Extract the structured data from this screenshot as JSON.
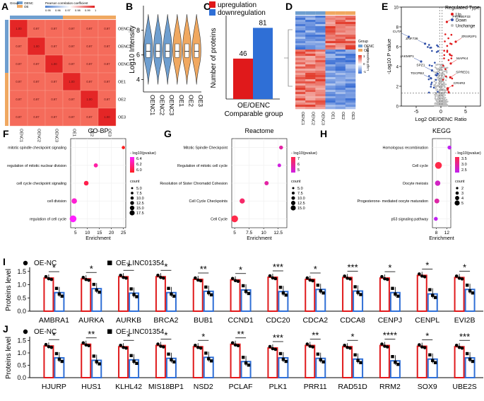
{
  "colors": {
    "oenc": "#6e9ecf",
    "oe": "#f0a860",
    "red": "#e0191b",
    "blue": "#2f6fd6",
    "heat_hi": "#e02a2a",
    "heat_lo": "#f58a6c",
    "gray": "#bdbdbd"
  },
  "chart_data": [
    {
      "panel": "A",
      "type": "heatmap",
      "legend_group_title": "Group",
      "legend_groups": [
        "OENC",
        "OE"
      ],
      "legend_scale_title": "Pearson correlation coefficient",
      "legend_scale_ticks": [
        "0.95",
        "0.96",
        "0.97",
        "0.98",
        "0.99",
        "1"
      ],
      "labels": [
        "OENC1",
        "OENC2",
        "OENC3",
        "OE1",
        "OE2",
        "OE3"
      ],
      "groups": [
        "OENC",
        "OENC",
        "OENC",
        "OE",
        "OE",
        "OE"
      ],
      "matrix": [
        [
          "1.00",
          "0.97",
          "0.97",
          "0.97",
          "0.97",
          "0.97"
        ],
        [
          "0.97",
          "1.00",
          "0.97",
          "0.97",
          "0.97",
          "0.97"
        ],
        [
          "0.97",
          "0.97",
          "1.00",
          "0.97",
          "0.97",
          "0.97"
        ],
        [
          "0.97",
          "0.97",
          "0.97",
          "1.00",
          "0.97",
          "0.97"
        ],
        [
          "0.97",
          "0.97",
          "0.97",
          "0.97",
          "1.00",
          "0.97"
        ],
        [
          "0.97",
          "0.97",
          "0.97",
          "0.97",
          "0.97",
          "1.00"
        ]
      ]
    },
    {
      "panel": "B",
      "type": "violin",
      "ylabel": "Log10 Intensity",
      "ylim": [
        3,
        10
      ],
      "yticks": [
        4,
        6,
        8
      ],
      "categories": [
        "OENC1",
        "OENC2",
        "OENC3",
        "OE1",
        "OE2",
        "OE3"
      ],
      "groups": [
        "OENC",
        "OENC",
        "OENC",
        "OE",
        "OE",
        "OE"
      ],
      "median": [
        6.3,
        6.3,
        6.3,
        6.3,
        6.3,
        6.3
      ],
      "q1": [
        5.8,
        5.8,
        5.8,
        5.8,
        5.8,
        5.8
      ],
      "q3": [
        6.9,
        6.9,
        6.9,
        6.9,
        6.9,
        6.9
      ],
      "min": [
        3.6,
        3.6,
        3.6,
        3.6,
        3.6,
        3.6
      ],
      "max": [
        9.3,
        9.3,
        9.3,
        9.3,
        9.3,
        9.3
      ]
    },
    {
      "panel": "C",
      "type": "bar",
      "legend": [
        "upregulation",
        "downregulation"
      ],
      "series": [
        {
          "name": "upregulation",
          "value": 46
        },
        {
          "name": "downregulation",
          "value": 81
        }
      ],
      "category": "OE/OENC",
      "xlabel": "Comparable group",
      "ylabel": "Number of proteins",
      "ylim": [
        0,
        95
      ]
    },
    {
      "panel": "D",
      "type": "heatmap",
      "legend_group_title": "Group",
      "legend_groups": [
        "OENC",
        "OE"
      ],
      "legend_scale_title": "Log2 Expression",
      "legend_scale_ticks": [
        "1",
        "0",
        "-1"
      ],
      "labels": [
        "OENC1",
        "OENC2",
        "OENC3",
        "OE1",
        "OE2",
        "OE3"
      ]
    },
    {
      "panel": "E",
      "type": "scatter",
      "title": "Regulated Type",
      "legend": [
        "Up",
        "Down",
        "Unchange"
      ],
      "xlabel": "Log2 OE/OENC Ratio",
      "ylabel": "-Log10 P value",
      "xlim": [
        -8,
        8
      ],
      "ylim": [
        0,
        10
      ],
      "xticks": [
        -5,
        0,
        5
      ],
      "yticks": [
        0,
        2,
        4,
        6,
        8,
        10
      ],
      "labeled_points": [
        {
          "name": "CUTA",
          "x": -6.5,
          "y": 7.0,
          "type": "Down"
        },
        {
          "name": "ZNF736",
          "x": -3.2,
          "y": 6.3,
          "type": "Down"
        },
        {
          "name": "JAKMIP1",
          "x": -4.0,
          "y": 4.5,
          "type": "Down"
        },
        {
          "name": "SPZ1",
          "x": -1.8,
          "y": 3.6,
          "type": "Down"
        },
        {
          "name": "TDCPB2",
          "x": -2.0,
          "y": 2.8,
          "type": "Down"
        },
        {
          "name": "PRAMEF33",
          "x": 1.2,
          "y": 8.5,
          "type": "Up"
        },
        {
          "name": "ZRSR2P1",
          "x": 3.0,
          "y": 6.5,
          "type": "Up"
        },
        {
          "name": "MAPK4",
          "x": 2.0,
          "y": 4.3,
          "type": "Up"
        },
        {
          "name": "SPRED1",
          "x": 1.9,
          "y": 2.9,
          "type": "Up"
        },
        {
          "name": "CRHR2",
          "x": 1.4,
          "y": 1.8,
          "type": "Up"
        }
      ]
    },
    {
      "panel": "F",
      "type": "scatter",
      "title": "GO-BP",
      "xlabel": "Enrichment",
      "xlim": [
        3,
        26
      ],
      "xticks": [
        5,
        10,
        15,
        20,
        25
      ],
      "terms": [
        "mitotic spindle checkpoint signaling",
        "regulation of mitotic nuclear division",
        "cell cycle checkpoint signaling",
        "cell division",
        "regulation of cell cycle"
      ],
      "enrichment": [
        25,
        13.5,
        9.5,
        4.5,
        4.0
      ],
      "count": [
        5,
        8,
        10,
        13,
        18
      ],
      "pvalue_log": [
        6.0,
        6.3,
        6.1,
        6.4,
        6.5
      ],
      "legend_color_title": "- log10(pvalue)",
      "legend_color_ticks": [
        "6.4",
        "6.2",
        "6.0"
      ],
      "legend_size_title": "count",
      "legend_size_ticks": [
        "5.0",
        "7.5",
        "10.0",
        "12.5",
        "15.0",
        "17.5"
      ]
    },
    {
      "panel": "G",
      "type": "scatter",
      "title": "Reactome",
      "xlabel": "Enrichment",
      "xlim": [
        4.5,
        14
      ],
      "xticks": [
        5.0,
        7.5,
        10.0,
        12.5
      ],
      "terms": [
        "Mitotic Spindle Checkpoint",
        "Regulation of mitotic cell cycle",
        "Resolution of Sister Chromatid Cohesion",
        "Cell Cycle Checkpoints",
        "Cell Cycle"
      ],
      "enrichment": [
        13.0,
        12.7,
        10.5,
        6.3,
        5.0
      ],
      "count": [
        6,
        5,
        7,
        10,
        15
      ],
      "pvalue_log": [
        6.0,
        5.0,
        6.0,
        7.0,
        7.5
      ],
      "legend_color_title": "- log10(pvalue)",
      "legend_color_ticks": [
        "7",
        "6",
        "5"
      ],
      "legend_size_title": "count",
      "legend_size_ticks": [
        "5.0",
        "7.5",
        "10.0",
        "12.5",
        "15.0"
      ]
    },
    {
      "panel": "H",
      "type": "scatter",
      "title": "KEGG",
      "xlabel": "Enrichment",
      "xlim": [
        6.5,
        13.5
      ],
      "xticks": [
        8,
        12
      ],
      "terms": [
        "Homologous recombination",
        "Cell cycle",
        "Oocyte meiosis",
        "Progesterone- mediated oocyte maturation",
        "p53 signaling pathway"
      ],
      "enrichment": [
        13.0,
        8.8,
        8.5,
        8.2,
        7.8
      ],
      "count": [
        2,
        5,
        3.5,
        3,
        2
      ],
      "pvalue_log": [
        2.5,
        3.6,
        2.8,
        3.0,
        2.5
      ],
      "legend_color_title": "- log10(pvalue)",
      "legend_color_ticks": [
        "3.5",
        "3.0",
        "2.5"
      ],
      "legend_size_title": "count",
      "legend_size_ticks": [
        "2",
        "3",
        "4",
        "5"
      ]
    },
    {
      "panel": "I",
      "type": "bar",
      "ylabel": "Proteins level",
      "ylim": [
        0,
        1.6
      ],
      "yticks": [
        "0.0",
        "0.5",
        "1.0",
        "1.5"
      ],
      "legend": [
        "OE-NC",
        "OE-LINC01354"
      ],
      "categories": [
        "AMBRA1",
        "AURKA",
        "AURKB",
        "BRCA2",
        "BUB1",
        "CCND1",
        "CDC20",
        "CDCA2",
        "CDCA8",
        "CENPJ",
        "CENPL",
        "EVI2B"
      ],
      "series": [
        {
          "name": "OE-NC",
          "values": [
            1.25,
            1.22,
            1.3,
            1.3,
            1.2,
            1.18,
            1.28,
            1.2,
            1.27,
            1.25,
            1.35,
            1.27
          ]
        },
        {
          "name": "OE-LINC01354",
          "values": [
            0.7,
            0.85,
            0.68,
            0.7,
            0.75,
            0.8,
            0.74,
            0.82,
            0.76,
            0.7,
            0.65,
            0.82
          ]
        }
      ],
      "significance": [
        "*",
        "*",
        "*",
        "*",
        "**",
        "*",
        "***",
        "*",
        "***",
        "*",
        "*",
        "*"
      ]
    },
    {
      "panel": "J",
      "type": "bar",
      "ylabel": "Proteins level",
      "ylim": [
        0,
        1.6
      ],
      "yticks": [
        "0.0",
        "0.5",
        "1.0",
        "1.5"
      ],
      "legend": [
        "OE-NC",
        "OE-LINC01354"
      ],
      "categories": [
        "HJURP",
        "HUS1",
        "KLHL42",
        "MIS18BP1",
        "NSD2",
        "PCLAF",
        "PLK1",
        "PRR11",
        "RAD51D",
        "RRM2",
        "SOX9",
        "UBE2S"
      ],
      "series": [
        {
          "name": "OE-NC",
          "values": [
            1.28,
            1.35,
            1.25,
            1.3,
            1.25,
            1.35,
            1.2,
            1.3,
            1.25,
            1.3,
            1.27,
            1.25
          ]
        },
        {
          "name": "OE-LINC01354",
          "values": [
            0.8,
            0.7,
            0.72,
            0.78,
            0.82,
            0.65,
            0.8,
            0.78,
            0.75,
            0.68,
            0.75,
            0.8
          ]
        }
      ],
      "significance": [
        "*",
        "**",
        "*",
        "*",
        "*",
        "**",
        "***",
        "**",
        "*",
        "****",
        "*",
        "***"
      ]
    }
  ]
}
